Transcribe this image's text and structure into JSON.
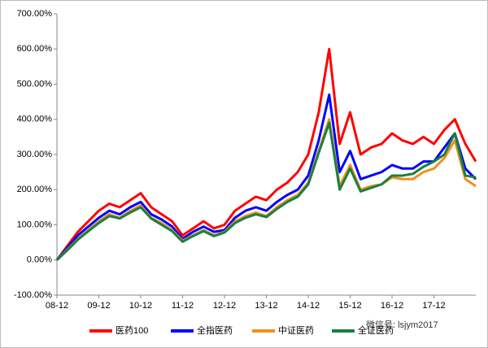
{
  "chart_data": {
    "type": "line",
    "categories": [
      "08-12",
      null,
      null,
      null,
      "09-12",
      null,
      null,
      null,
      "10-12",
      null,
      null,
      null,
      "11-12",
      null,
      null,
      null,
      "12-12",
      null,
      null,
      null,
      "13-12",
      null,
      null,
      null,
      "14-12",
      null,
      null,
      null,
      "15-12",
      null,
      null,
      null,
      "16-12",
      null,
      null,
      null,
      "17-12",
      null,
      null,
      null,
      null
    ],
    "series": [
      {
        "name": "医药100",
        "color": "#ff0000",
        "values": [
          0,
          40,
          80,
          110,
          140,
          160,
          150,
          170,
          190,
          150,
          130,
          110,
          70,
          90,
          110,
          90,
          100,
          140,
          160,
          180,
          170,
          200,
          220,
          250,
          300,
          420,
          600,
          330,
          420,
          300,
          320,
          330,
          360,
          340,
          330,
          350,
          330,
          370,
          400,
          330,
          280
        ]
      },
      {
        "name": "全指医药",
        "color": "#0000ff",
        "values": [
          0,
          35,
          70,
          95,
          120,
          140,
          130,
          150,
          165,
          130,
          115,
          95,
          60,
          80,
          95,
          80,
          85,
          120,
          140,
          150,
          140,
          165,
          185,
          200,
          240,
          340,
          470,
          250,
          310,
          230,
          240,
          250,
          270,
          260,
          260,
          280,
          280,
          320,
          360,
          260,
          230
        ]
      },
      {
        "name": "中证医药",
        "color": "#f0901e",
        "values": [
          0,
          30,
          60,
          85,
          110,
          130,
          120,
          140,
          155,
          120,
          105,
          85,
          55,
          70,
          85,
          70,
          80,
          110,
          125,
          135,
          125,
          150,
          170,
          185,
          220,
          310,
          400,
          210,
          270,
          200,
          210,
          215,
          235,
          230,
          230,
          250,
          260,
          290,
          340,
          230,
          210
        ]
      },
      {
        "name": "全证医药",
        "color": "#1a8040",
        "values": [
          0,
          28,
          58,
          82,
          105,
          125,
          118,
          135,
          150,
          118,
          100,
          82,
          52,
          68,
          82,
          68,
          78,
          105,
          120,
          130,
          122,
          145,
          165,
          180,
          215,
          305,
          390,
          200,
          260,
          195,
          205,
          215,
          240,
          240,
          245,
          265,
          280,
          300,
          360,
          240,
          235
        ]
      }
    ],
    "ylim": [
      -100,
      700
    ],
    "yticks": [
      {
        "value": -100,
        "label": "-100.00%"
      },
      {
        "value": 0,
        "label": "0.00%"
      },
      {
        "value": 100,
        "label": "100.00%"
      },
      {
        "value": 200,
        "label": "200.00%"
      },
      {
        "value": 300,
        "label": "300.00%"
      },
      {
        "value": 400,
        "label": "400.00%"
      },
      {
        "value": 500,
        "label": "500.00%"
      },
      {
        "value": 600,
        "label": "600.00%"
      },
      {
        "value": 700,
        "label": "700.00%"
      }
    ],
    "legend": "bottom",
    "annotation": "微信号: lsjym2017"
  }
}
